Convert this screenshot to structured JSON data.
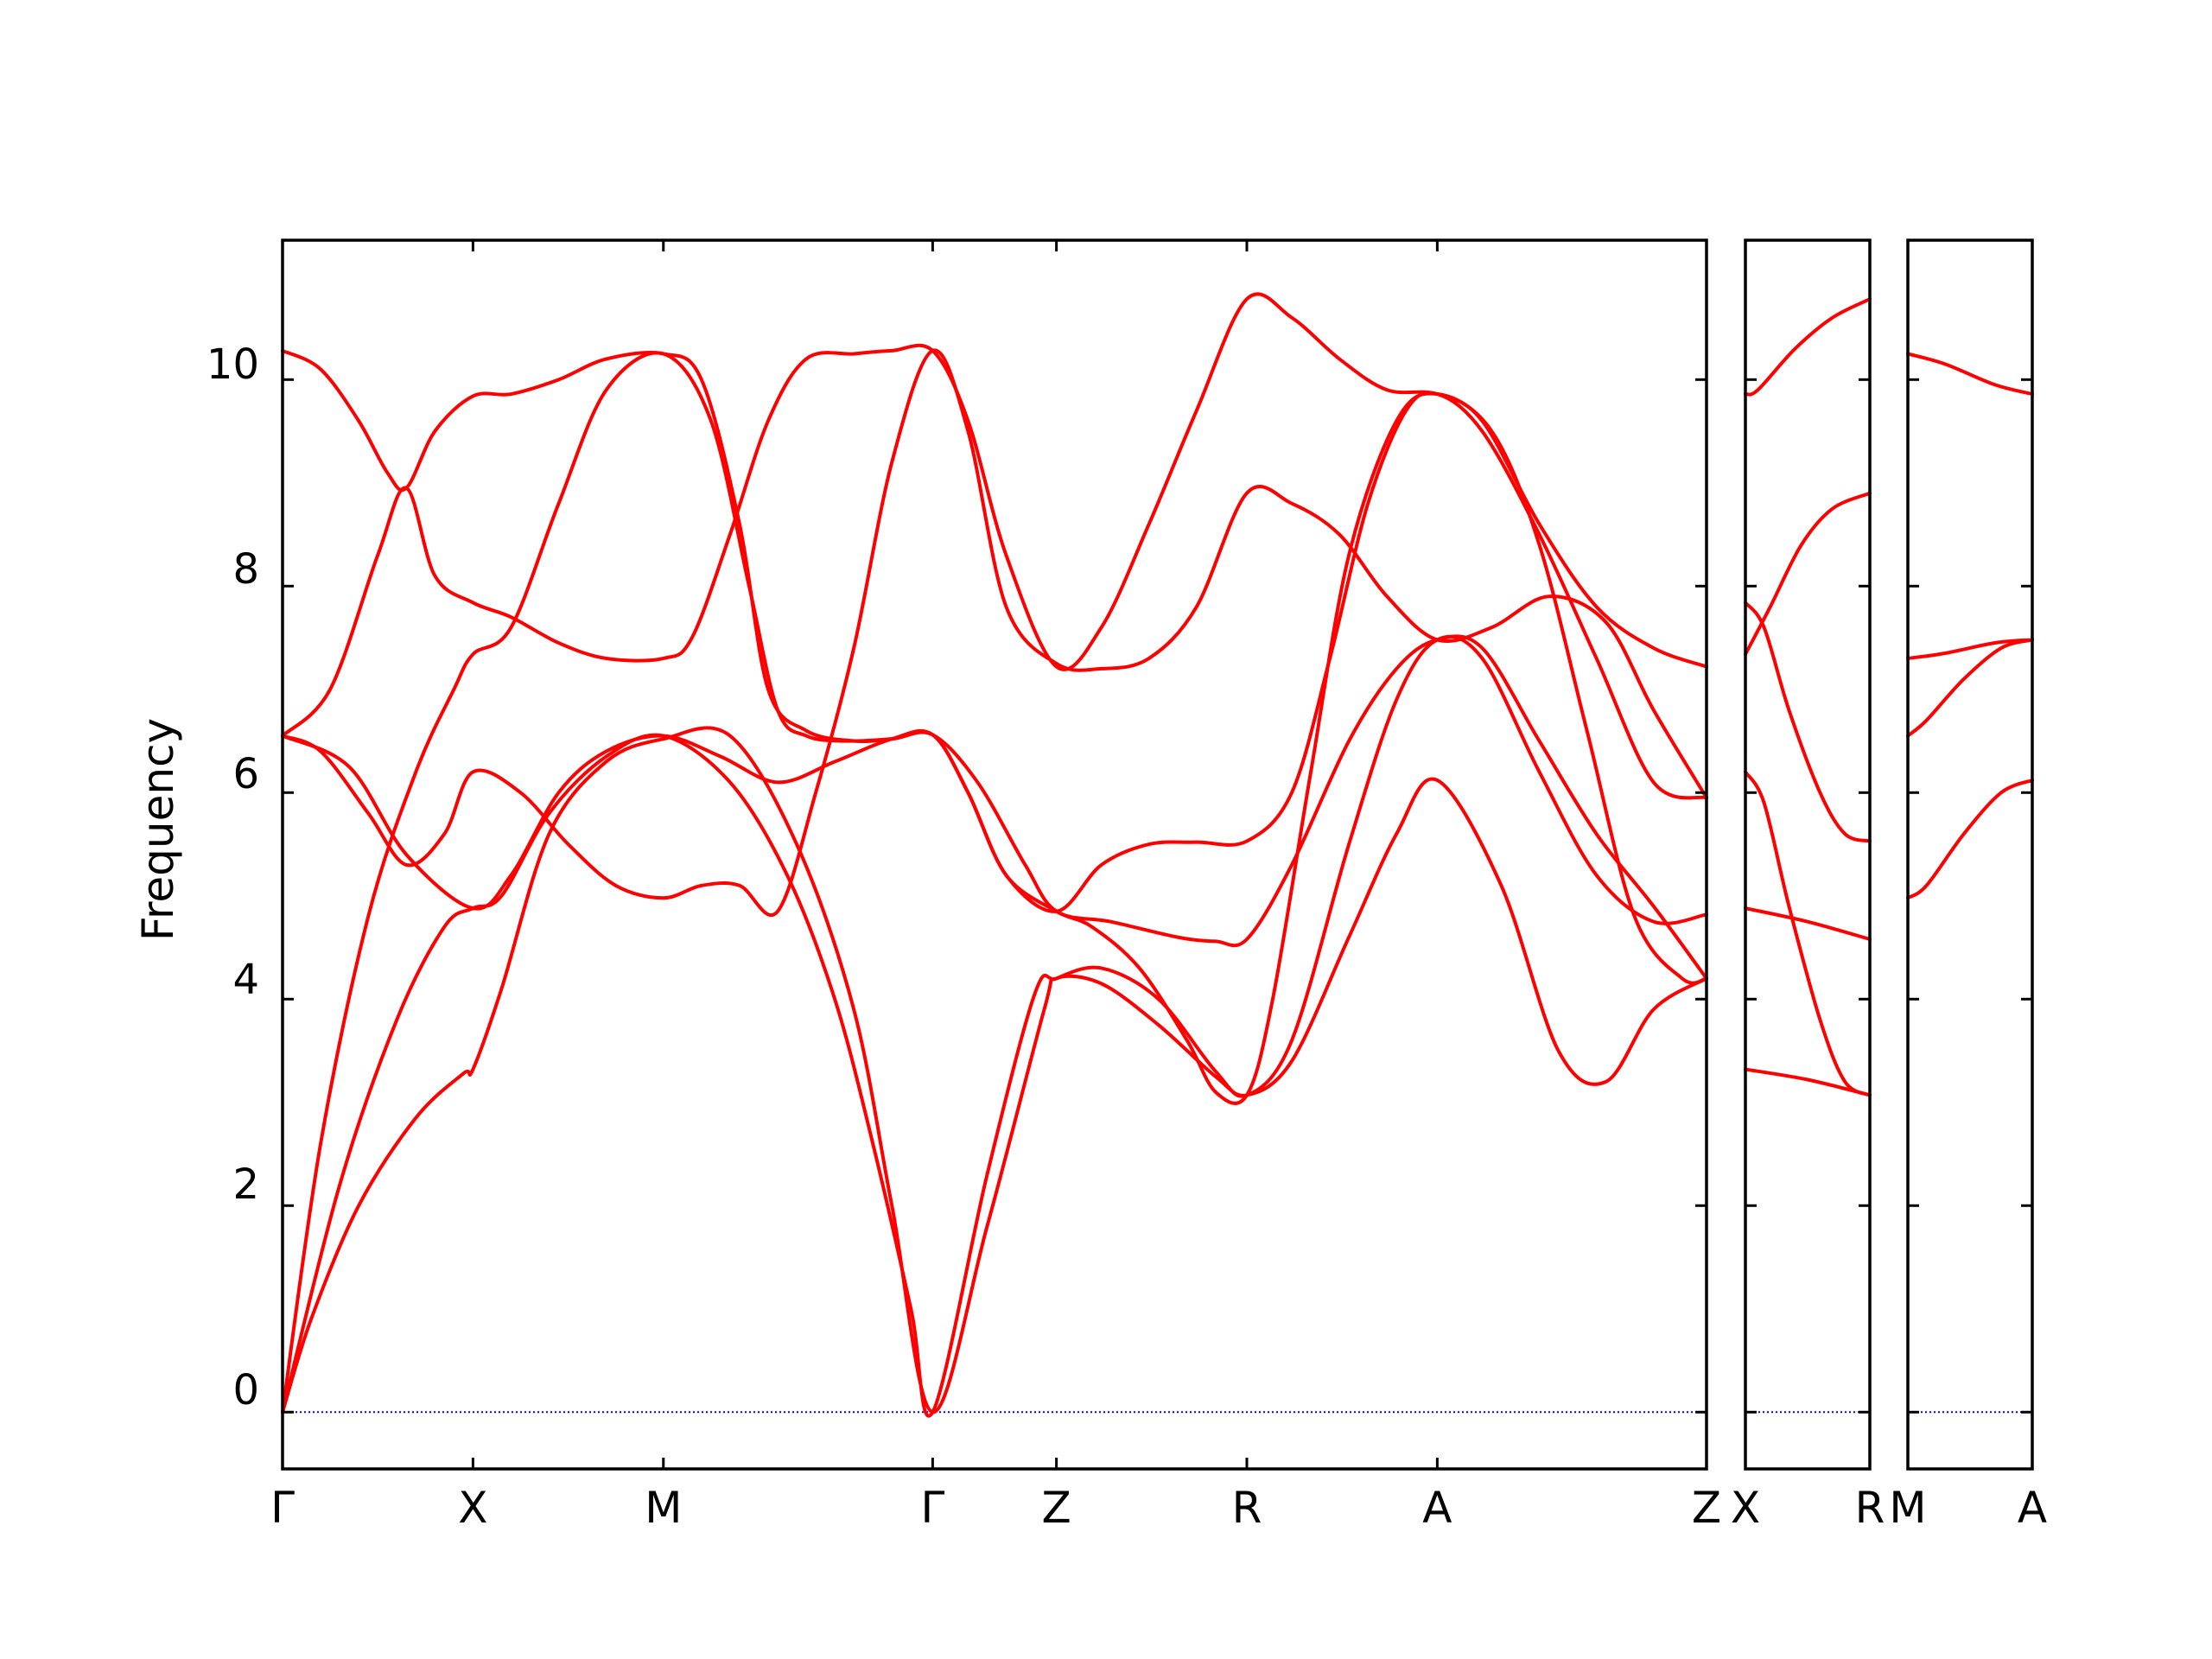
{
  "chart_data": {
    "type": "line",
    "ylabel": "Frequency",
    "ylim": [
      -0.55,
      11.35
    ],
    "y_ticks": [
      "0",
      "2",
      "4",
      "6",
      "8",
      "10"
    ],
    "zero_line_color": "#0000ff",
    "band_color": "#ff0000",
    "panels": [
      {
        "x_labels": [
          "Γ",
          "X",
          "M",
          "Γ",
          "Z",
          "R",
          "A",
          "Z"
        ],
        "x_positions": [
          0,
          1,
          2,
          3.414,
          4.064,
          5.064,
          6.064,
          7.478
        ],
        "bands": [
          {
            "x": [
              0,
              0.15,
              0.4,
              0.7,
              0.95,
              1,
              1.15,
              1.4,
              1.7,
              2,
              2.35,
              2.7,
              3,
              3.2,
              3.414,
              3.7,
              4,
              4.064,
              4.3,
              4.6,
              4.9,
              5.064,
              5.3,
              5.6,
              5.85,
              6.064,
              6.4,
              6.7,
              6.95,
              7.2,
              7.478
            ],
            "y": [
              0,
              0.9,
              2.0,
              2.85,
              3.28,
              3.32,
              4.1,
              5.6,
              6.3,
              6.52,
              6.55,
              5.5,
              3.9,
              2.0,
              0,
              1.8,
              3.9,
              4.2,
              4.15,
              3.75,
              3.25,
              3.07,
              3.4,
              4.6,
              5.6,
              6.12,
              5.1,
              3.5,
              3.2,
              3.9,
              4.2
            ]
          },
          {
            "x": [
              0,
              0.3,
              0.6,
              0.85,
              1,
              1.15,
              1.4,
              1.7,
              2,
              2.35,
              2.65,
              2.9,
              3.1,
              3.3,
              3.414,
              3.7,
              3.95,
              4.064,
              4.3,
              4.6,
              4.9,
              5.064,
              5.3,
              5.6,
              5.85,
              6.064,
              6.3,
              6.6,
              6.9,
              7.2,
              7.478
            ],
            "y": [
              0,
              2.2,
              3.8,
              4.7,
              4.88,
              5.0,
              5.8,
              6.35,
              6.55,
              6.1,
              5.2,
              4.0,
              2.6,
              1.0,
              0,
              2.3,
              4.05,
              4.2,
              4.3,
              4.0,
              3.3,
              3.07,
              3.6,
              5.5,
              6.9,
              7.48,
              7.3,
              6.2,
              5.2,
              4.75,
              4.82
            ]
          },
          {
            "x": [
              0,
              0.2,
              0.45,
              0.7,
              0.9,
              1,
              1.2,
              1.45,
              1.7,
              2,
              2.25,
              2.45,
              2.6,
              2.75,
              2.95,
              3.2,
              3.414,
              3.65,
              3.9,
              4.064,
              4.35,
              4.7,
              4.9,
              5.064,
              5.3,
              5.6,
              5.85,
              6.064,
              6.3,
              6.6,
              6.9,
              7.2,
              7.478
            ],
            "y": [
              0,
              2.6,
              4.8,
              6.2,
              7.0,
              7.34,
              7.6,
              8.8,
              9.9,
              10.25,
              9.6,
              8.0,
              6.8,
              6.55,
              6.5,
              6.52,
              6.56,
              6.1,
              5.3,
              4.85,
              4.75,
              4.6,
              4.56,
              4.58,
              5.3,
              6.5,
              7.2,
              7.48,
              7.4,
              6.5,
              5.6,
              4.9,
              4.2
            ]
          },
          {
            "x": [
              0,
              0.35,
              0.65,
              1,
              1.2,
              1.45,
              1.7,
              2,
              2.3,
              2.6,
              2.9,
              3.2,
              3.414,
              3.6,
              3.8,
              4.064,
              4.3,
              4.55,
              4.8,
              5.064,
              5.3,
              5.5,
              5.7,
              5.9,
              6.064,
              6.3,
              6.6,
              6.9,
              7.2,
              7.478
            ],
            "y": [
              6.55,
              6.25,
              5.4,
              4.88,
              5.2,
              6.0,
              6.4,
              6.55,
              6.35,
              6.1,
              6.3,
              6.52,
              6.56,
              6.0,
              5.2,
              4.85,
              5.3,
              5.5,
              5.52,
              5.53,
              6.0,
              7.3,
              8.8,
              9.7,
              9.86,
              9.5,
              8.5,
              7.3,
              6.1,
              5.95
            ]
          },
          {
            "x": [
              0,
              0.2,
              0.45,
              0.65,
              0.85,
              1,
              1.25,
              1.5,
              1.75,
              2,
              2.2,
              2.4,
              2.6,
              2.8,
              3.0,
              3.2,
              3.414,
              3.6,
              3.8,
              4.064,
              4.3,
              4.55,
              4.8,
              5.064,
              5.3,
              5.55,
              5.8,
              6.064,
              6.35,
              6.65,
              6.95,
              7.2,
              7.478
            ],
            "y": [
              6.55,
              6.4,
              5.8,
              5.3,
              5.6,
              6.2,
              6.0,
              5.5,
              5.1,
              4.98,
              5.1,
              5.1,
              4.85,
              6.0,
              7.4,
              9.2,
              10.28,
              9.5,
              7.8,
              7.25,
              7.2,
              7.3,
              7.8,
              8.9,
              8.8,
              8.5,
              7.9,
              7.48,
              7.6,
              7.9,
              7.65,
              6.8,
              5.95
            ]
          },
          {
            "x": [
              0,
              0.25,
              0.5,
              0.65,
              0.8,
              1,
              1.2,
              1.45,
              1.7,
              2,
              2.15,
              2.35,
              2.55,
              2.75,
              3.0,
              3.2,
              3.414,
              3.6,
              3.8,
              4.064,
              4.3,
              4.55,
              4.8,
              5.064,
              5.3,
              5.55,
              5.8,
              6.064,
              6.3,
              6.6,
              6.9,
              7.2,
              7.478
            ],
            "y": [
              6.55,
              7.0,
              8.3,
              8.95,
              8.1,
              7.84,
              7.7,
              7.45,
              7.3,
              7.3,
              7.5,
              8.5,
              9.6,
              10.2,
              10.25,
              10.28,
              10.28,
              9.6,
              8.3,
              7.22,
              7.6,
              8.6,
              9.7,
              10.78,
              10.6,
              10.2,
              9.9,
              9.86,
              9.6,
              8.6,
              7.8,
              7.4,
              7.22
            ]
          },
          {
            "x": [
              0,
              0.2,
              0.4,
              0.55,
              0.65,
              0.8,
              1,
              1.2,
              1.45,
              1.7,
              2,
              2.2,
              2.4,
              2.55,
              2.75,
              3.0,
              3.2,
              3.414,
              3.6,
              3.8,
              4.064,
              4.25,
              4.5,
              4.75,
              4.9,
              5.064,
              5.2,
              5.4,
              5.6,
              5.85,
              6.064,
              6.35,
              6.6,
              6.85,
              7.1,
              7.35,
              7.478
            ],
            "y": [
              10.28,
              10.1,
              9.6,
              9.1,
              8.95,
              9.5,
              9.84,
              9.86,
              10.0,
              10.2,
              10.25,
              10.0,
              8.6,
              7.0,
              6.6,
              6.5,
              6.52,
              6.56,
              6.0,
              5.2,
              4.85,
              4.7,
              4.3,
              3.6,
              3.1,
              3.07,
              4.0,
              6.2,
              8.3,
              9.6,
              9.86,
              9.5,
              8.4,
              6.6,
              4.8,
              4.2,
              4.2
            ]
          }
        ]
      },
      {
        "x_labels": [
          "X",
          "R"
        ],
        "x_positions": [
          0,
          1
        ],
        "bands": [
          {
            "x": [
              0,
              0.5,
              1
            ],
            "y": [
              3.32,
              3.22,
              3.07
            ]
          },
          {
            "x": [
              0,
              0.5,
              1
            ],
            "y": [
              4.88,
              4.75,
              4.58
            ]
          },
          {
            "x": [
              0,
              0.15,
              0.35,
              0.6,
              0.8,
              1
            ],
            "y": [
              6.2,
              5.9,
              4.9,
              3.8,
              3.2,
              3.07
            ]
          },
          {
            "x": [
              0,
              0.15,
              0.35,
              0.6,
              0.8,
              1
            ],
            "y": [
              7.84,
              7.6,
              6.8,
              6.0,
              5.6,
              5.53
            ]
          },
          {
            "x": [
              0,
              0.2,
              0.45,
              0.7,
              1
            ],
            "y": [
              7.34,
              7.8,
              8.4,
              8.75,
              8.9
            ]
          },
          {
            "x": [
              0,
              0.1,
              0.4,
              0.7,
              1
            ],
            "y": [
              9.86,
              9.9,
              10.3,
              10.6,
              10.78
            ]
          }
        ]
      },
      {
        "x_labels": [
          "M",
          "A"
        ],
        "x_positions": [
          0,
          1
        ],
        "bands": [
          {
            "x": [
              0,
              0.15,
              0.45,
              0.75,
              1
            ],
            "y": [
              4.98,
              5.1,
              5.6,
              6.0,
              6.12
            ]
          },
          {
            "x": [
              0,
              0.15,
              0.45,
              0.75,
              1
            ],
            "y": [
              6.55,
              6.7,
              7.1,
              7.4,
              7.48
            ]
          },
          {
            "x": [
              0,
              0.3,
              0.7,
              1
            ],
            "y": [
              7.3,
              7.35,
              7.45,
              7.48
            ]
          },
          {
            "x": [
              0,
              0.3,
              0.7,
              1
            ],
            "y": [
              10.25,
              10.15,
              9.95,
              9.86
            ]
          }
        ]
      }
    ]
  }
}
